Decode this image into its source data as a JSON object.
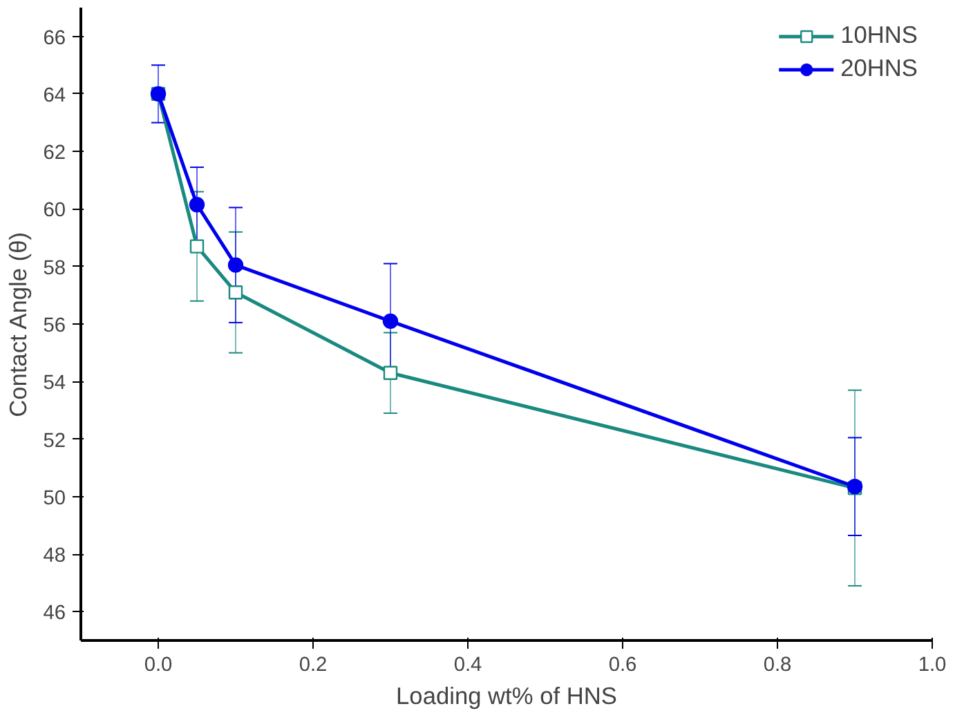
{
  "chart_data": {
    "type": "line",
    "xlabel": "Loading wt% of HNS",
    "ylabel": "Contact Angle (θ)",
    "x": [
      0,
      0.05,
      0.1,
      0.3,
      0.9
    ],
    "series": [
      {
        "name": "10HNS",
        "color": "#1a8a80",
        "marker": "square",
        "values": [
          64,
          58.7,
          57.1,
          54.3,
          50.3
        ],
        "errors": [
          null,
          1.9,
          2.1,
          1.4,
          3.4
        ]
      },
      {
        "name": "20HNS",
        "color": "#0000ee",
        "marker": "circle",
        "values": [
          64,
          60.15,
          58.05,
          56.1,
          50.35
        ],
        "errors": [
          1,
          1.3,
          2,
          2,
          1.7
        ]
      }
    ],
    "xlim": [
      -0.1,
      1.0
    ],
    "ylim": [
      45,
      67
    ],
    "xticks": [
      {
        "value": 0,
        "label": "0.0"
      },
      0.2,
      0.4,
      0.6,
      0.8,
      {
        "value": 1,
        "label": "1.0"
      }
    ],
    "yticks": [
      46,
      48,
      50,
      52,
      54,
      56,
      58,
      60,
      62,
      64,
      66
    ],
    "grid": false,
    "legend": "top right"
  }
}
